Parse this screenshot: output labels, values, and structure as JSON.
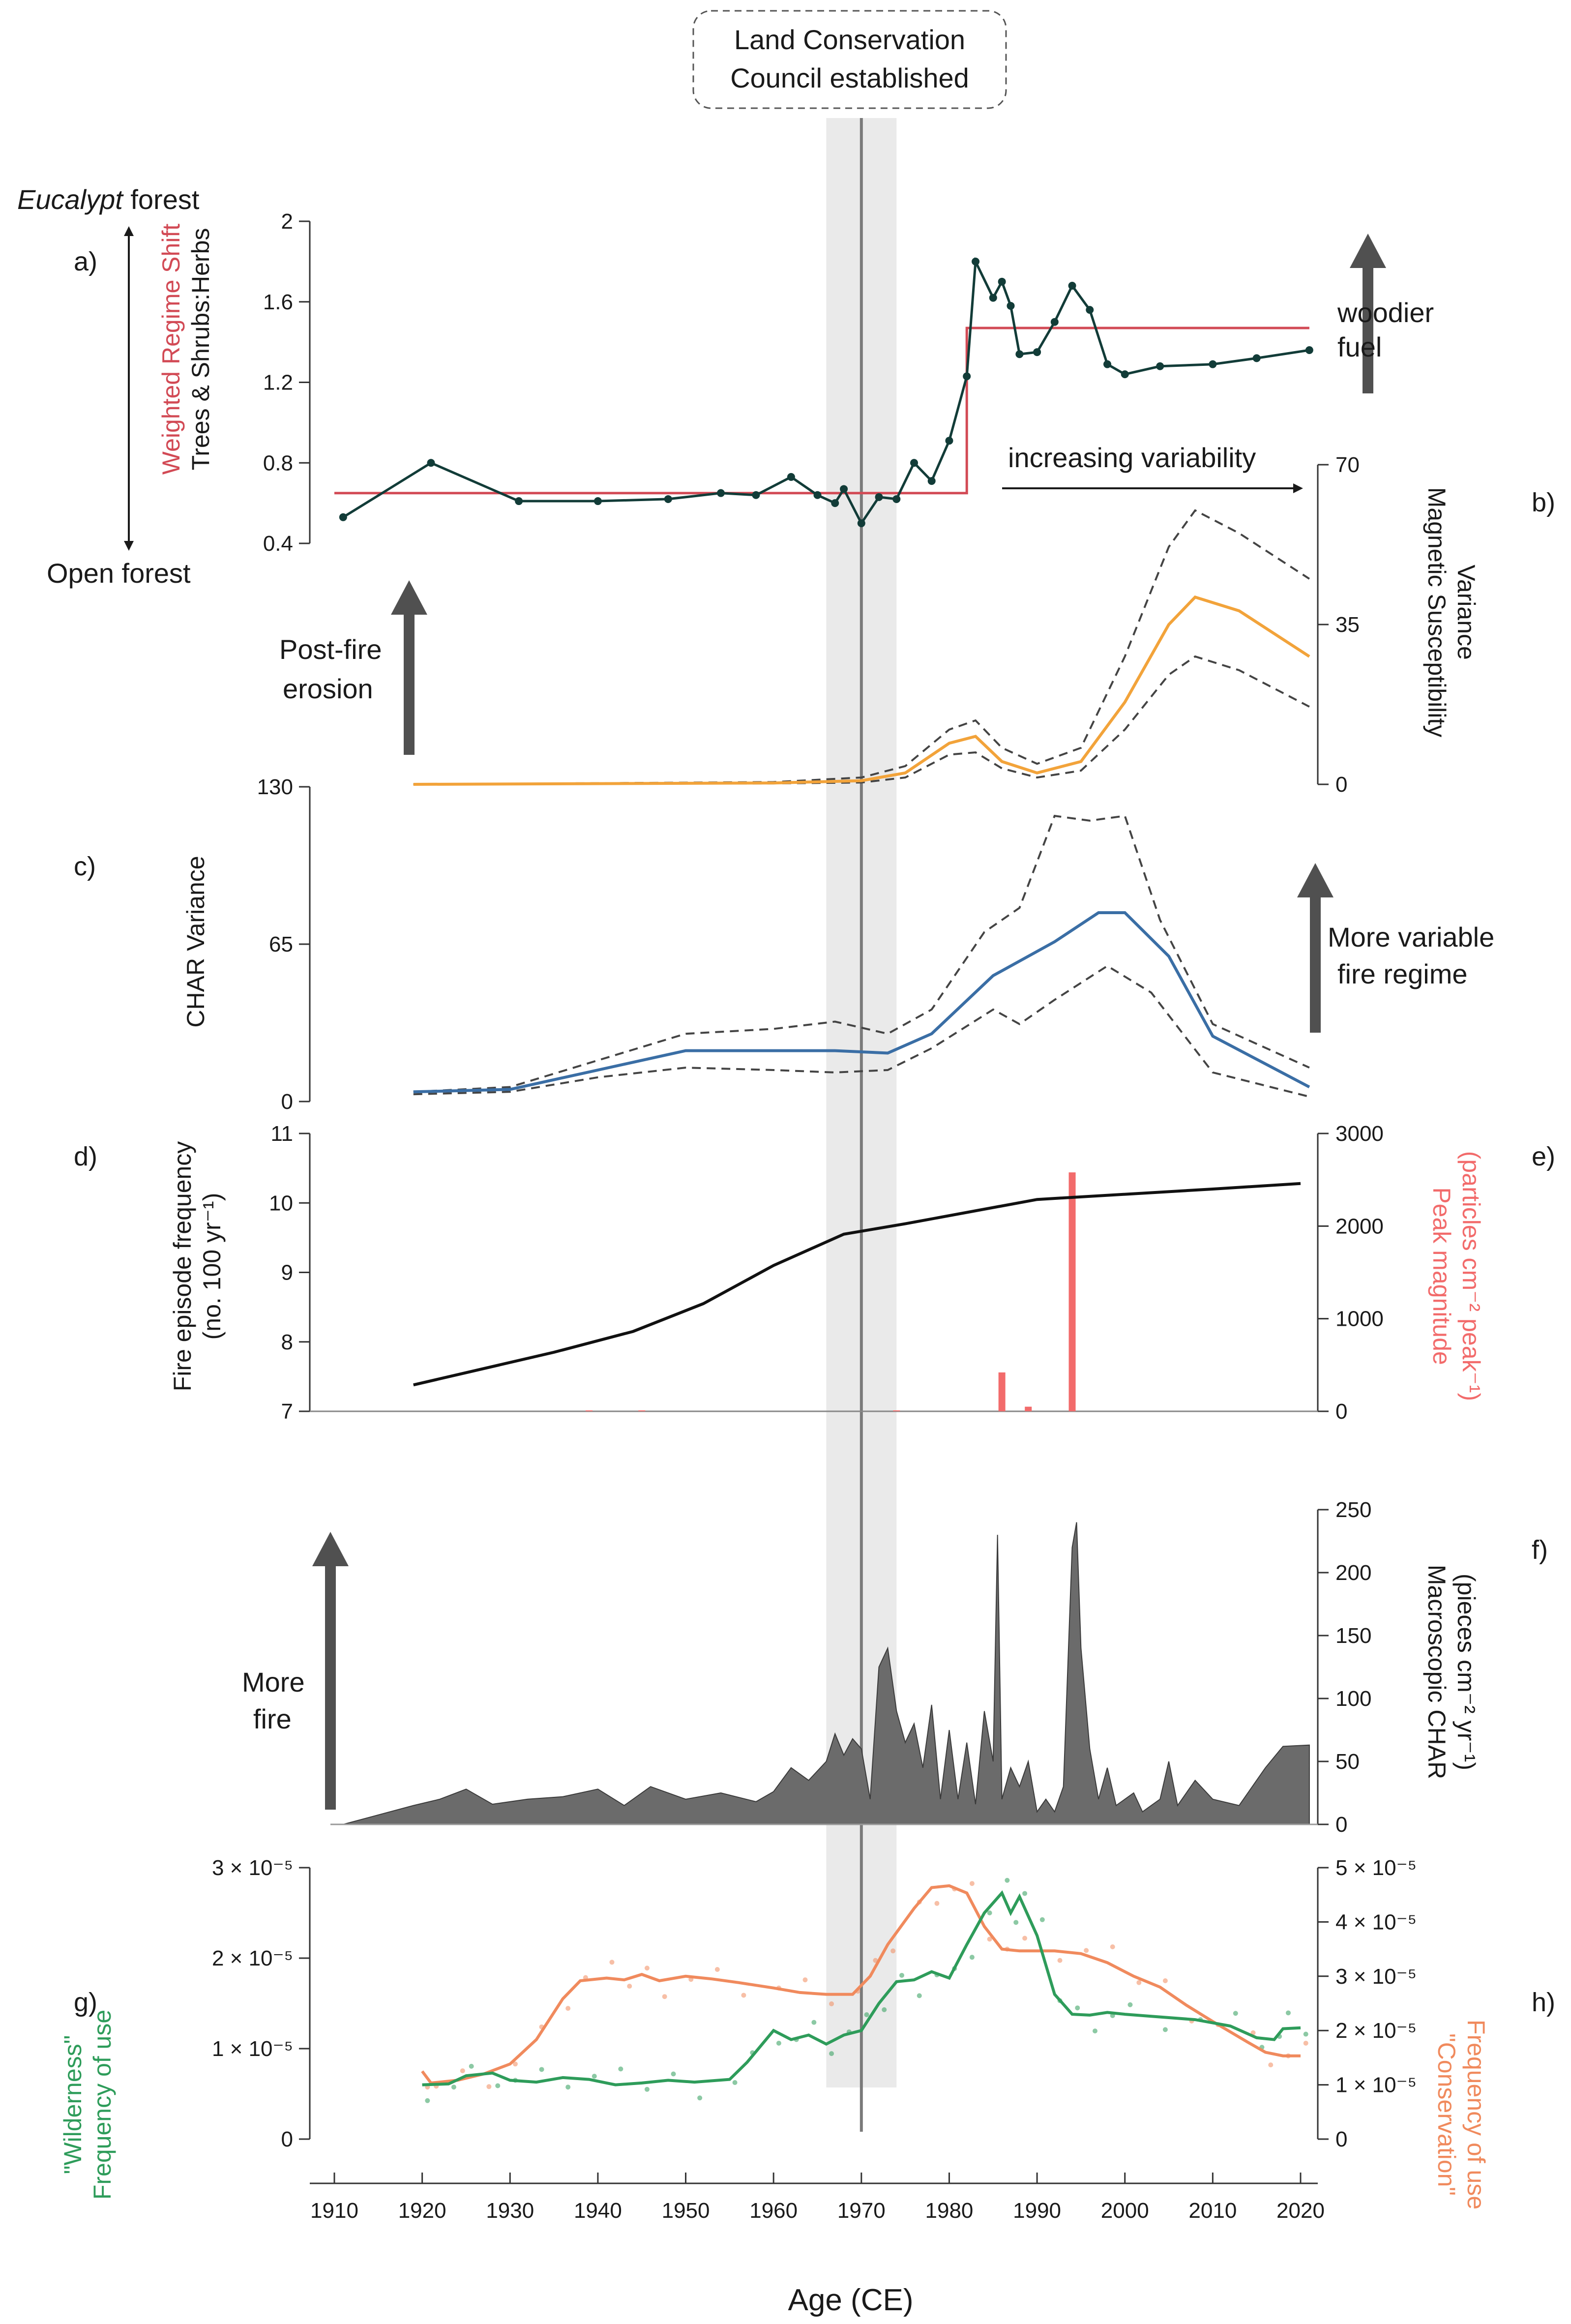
{
  "callout": {
    "line1": "Land Conservation",
    "line2": "Council established",
    "year": 1970,
    "band": [
      1966,
      1974
    ]
  },
  "xaxis": {
    "title": "Age (CE)",
    "min": 1910,
    "max": 2020,
    "ticks": [
      "1910",
      "1920",
      "1930",
      "1940",
      "1950",
      "1960",
      "1970",
      "1980",
      "1990",
      "2000",
      "2010",
      "2020"
    ]
  },
  "panel_labels": [
    "a)",
    "b)",
    "c)",
    "d)",
    "e)",
    "f)",
    "g)",
    "h)"
  ],
  "annotations": {
    "eucalypt_italic": "Eucalypt",
    "eucalypt_rest": " forest",
    "open_forest": "Open forest",
    "woodier_l1": "woodier",
    "woodier_l2": "fuel",
    "variability": "increasing variability",
    "erosion_l1": "Post-fire",
    "erosion_l2": "erosion",
    "fire_regime_l1": "More variable",
    "fire_regime_l2": "fire regime",
    "more_fire_l1": "More",
    "more_fire_l2": "fire"
  },
  "axis_labels": {
    "a_red": "Weighted Regime Shift",
    "a_black": "Trees & Shrubs:Herbs",
    "b_l1": "Magnetic Susceptibility",
    "b_l2": "Variance",
    "c": "CHAR Variance",
    "d_l1": "Fire episode frequency",
    "d_l2": "(no. 100 yr⁻¹)",
    "e_l1": "Peak magnitude",
    "e_l2": "(particles cm⁻² peak⁻¹)",
    "f_l1": "Macroscopic CHAR",
    "f_l2": "(pieces cm⁻² yr⁻¹)",
    "g_l1": "\"Wilderness\"",
    "g_l2": "Frequency of use",
    "h_l1": "\"Conservation\"",
    "h_l2": "Frequency of use"
  },
  "colors": {
    "ratio": "#123c38",
    "regime": "#d24a55",
    "mag": "#f2a33a",
    "char": "#3a6ea5",
    "bounds": "#444444",
    "peaks": "#f26b6b",
    "macro": "#6b6b6b",
    "wild": "#2e9c5a",
    "cons": "#f08a5d",
    "band": "#d9d9d9",
    "line1970": "#7a7a7a",
    "arrow": "#505050"
  },
  "chart_data": [
    {
      "panel": "a",
      "type": "line",
      "ylim": [
        0.4,
        2
      ],
      "yticks": [
        "0.4",
        "0.8",
        "1.2",
        "1.6",
        "2"
      ],
      "series": [
        {
          "name": "Trees & Shrubs:Herbs",
          "x": [
            1911,
            1921,
            1931,
            1940,
            1948,
            1954,
            1958,
            1962,
            1965,
            1967,
            1968,
            1970,
            1972,
            1974,
            1976,
            1978,
            1980,
            1982,
            1983,
            1985,
            1986,
            1987,
            1988,
            1990,
            1992,
            1994,
            1996,
            1998,
            2000,
            2004,
            2010,
            2015,
            2021
          ],
          "y": [
            0.53,
            0.8,
            0.61,
            0.61,
            0.62,
            0.65,
            0.64,
            0.73,
            0.64,
            0.6,
            0.67,
            0.5,
            0.63,
            0.62,
            0.8,
            0.71,
            0.91,
            1.23,
            1.8,
            1.62,
            1.7,
            1.58,
            1.34,
            1.35,
            1.5,
            1.68,
            1.56,
            1.29,
            1.24,
            1.28,
            1.29,
            1.32,
            1.36
          ]
        },
        {
          "name": "Weighted Regime Shift",
          "x": [
            1910,
            1982,
            1982,
            2021
          ],
          "y": [
            0.65,
            0.65,
            1.47,
            1.47
          ]
        }
      ]
    },
    {
      "panel": "b",
      "type": "line",
      "ylim": [
        0,
        70
      ],
      "yticks": [
        "0",
        "35",
        "70"
      ],
      "series": [
        {
          "name": "Magnetic Susceptibility Variance",
          "x": [
            1919,
            1960,
            1970,
            1975,
            1980,
            1983,
            1986,
            1990,
            1995,
            2000,
            2005,
            2008,
            2013,
            2021
          ],
          "y": [
            0,
            0.3,
            0.8,
            2.5,
            9,
            10.5,
            5,
            2.5,
            5,
            18,
            35,
            41,
            38,
            28
          ]
        },
        {
          "name": "Upper bound",
          "x": [
            1919,
            1960,
            1970,
            1975,
            1980,
            1983,
            1986,
            1990,
            1995,
            2000,
            2005,
            2008,
            2013,
            2021
          ],
          "y": [
            0,
            0.5,
            1.5,
            4,
            12,
            14,
            8,
            4.5,
            8,
            28,
            52,
            60,
            55,
            45
          ]
        },
        {
          "name": "Lower bound",
          "x": [
            1919,
            1960,
            1970,
            1975,
            1980,
            1983,
            1986,
            1990,
            1995,
            2000,
            2005,
            2008,
            2013,
            2021
          ],
          "y": [
            0,
            0.2,
            0.4,
            1.5,
            6.5,
            7,
            3.5,
            1.5,
            3,
            12,
            24,
            28,
            25,
            17
          ]
        }
      ]
    },
    {
      "panel": "c",
      "type": "line",
      "ylim": [
        0,
        130
      ],
      "yticks": [
        "0",
        "65",
        "130"
      ],
      "series": [
        {
          "name": "CHAR Variance",
          "x": [
            1919,
            1930,
            1940,
            1950,
            1960,
            1967,
            1973,
            1978,
            1985,
            1992,
            1997,
            2000,
            2005,
            2010,
            2021
          ],
          "y": [
            4,
            5,
            13,
            21,
            21,
            21,
            20,
            28,
            52,
            66,
            78,
            78,
            60,
            27,
            6
          ]
        },
        {
          "name": "Upper bound",
          "x": [
            1919,
            1930,
            1940,
            1950,
            1960,
            1967,
            1973,
            1978,
            1984,
            1988,
            1992,
            1996,
            2000,
            2004,
            2010,
            2021
          ],
          "y": [
            4,
            6,
            17,
            28,
            30,
            33,
            28,
            38,
            70,
            80,
            118,
            116,
            118,
            75,
            32,
            14
          ]
        },
        {
          "name": "Lower bound",
          "x": [
            1919,
            1930,
            1940,
            1950,
            1960,
            1967,
            1973,
            1978,
            1985,
            1988,
            1992,
            1998,
            2003,
            2010,
            2021
          ],
          "y": [
            3,
            4,
            10,
            14,
            13,
            12,
            13,
            22,
            38,
            32,
            42,
            56,
            45,
            12,
            2
          ]
        }
      ]
    },
    {
      "panel": "d",
      "type": "line",
      "ylim": [
        7,
        11
      ],
      "yticks": [
        "7",
        "8",
        "9",
        "10",
        "11"
      ],
      "series": [
        {
          "name": "Fire episode frequency",
          "x": [
            1919,
            1935,
            1944,
            1952,
            1960,
            1968,
            1975,
            1990,
            2010,
            2020
          ],
          "y": [
            7.38,
            7.85,
            8.15,
            8.55,
            9.1,
            9.55,
            9.7,
            10.05,
            10.2,
            10.28
          ]
        }
      ]
    },
    {
      "panel": "e",
      "type": "bar",
      "ylim": [
        0,
        3000
      ],
      "yticks": [
        "0",
        "1000",
        "2000",
        "3000"
      ],
      "x": [
        1939,
        1945,
        1974,
        1986,
        1989,
        1994
      ],
      "values": [
        10,
        10,
        10,
        420,
        50,
        2580
      ]
    },
    {
      "panel": "f",
      "type": "area",
      "ylim": [
        0,
        250
      ],
      "yticks": [
        "0",
        "50",
        "100",
        "150",
        "200",
        "250"
      ],
      "x": [
        1911,
        1919,
        1922,
        1925,
        1928,
        1932,
        1936,
        1940,
        1943,
        1946,
        1950,
        1954,
        1958,
        1960,
        1962,
        1964,
        1966,
        1967,
        1968,
        1969,
        1970,
        1971,
        1972,
        1973,
        1974,
        1975,
        1976,
        1977,
        1978,
        1979,
        1980,
        1981,
        1982,
        1983,
        1984,
        1985,
        1985.5,
        1986,
        1987,
        1988,
        1989,
        1990,
        1991,
        1992,
        1993,
        1994,
        1994.5,
        1995,
        1996,
        1997,
        1998,
        1999,
        2000,
        2001,
        2002,
        2003,
        2004,
        2005,
        2006,
        2008,
        2010,
        2013,
        2016,
        2018,
        2021
      ],
      "values": [
        0,
        15,
        20,
        28,
        16,
        20,
        22,
        28,
        15,
        30,
        20,
        25,
        18,
        26,
        45,
        35,
        50,
        72,
        55,
        68,
        60,
        20,
        125,
        140,
        90,
        65,
        80,
        45,
        95,
        20,
        75,
        20,
        65,
        16,
        90,
        50,
        230,
        20,
        45,
        30,
        50,
        10,
        20,
        10,
        30,
        220,
        240,
        140,
        60,
        20,
        45,
        15,
        20,
        25,
        10,
        15,
        20,
        50,
        15,
        35,
        20,
        15,
        45,
        62,
        63
      ]
    },
    {
      "panel": "g",
      "type": "line",
      "ylim": [
        0,
        3e-05
      ],
      "yticks": [
        "0",
        "1 × 10⁻⁵",
        "2 × 10⁻⁵",
        "3 × 10⁻⁵"
      ],
      "series": [
        {
          "name": "\"Wilderness\" Frequency of use",
          "x": [
            1920,
            1923,
            1925,
            1928,
            1930,
            1933,
            1936,
            1939,
            1942,
            1945,
            1948,
            1951,
            1955,
            1957,
            1960,
            1962,
            1964,
            1966,
            1968,
            1970,
            1972,
            1974,
            1976,
            1978,
            1980,
            1982,
            1984,
            1986,
            1987,
            1988,
            1990,
            1992,
            1994,
            1996,
            1998,
            2000,
            2004,
            2008,
            2012,
            2015,
            2017,
            2018,
            2020
          ],
          "y": [
            0.6,
            0.61,
            0.7,
            0.73,
            0.65,
            0.63,
            0.68,
            0.66,
            0.6,
            0.62,
            0.65,
            0.63,
            0.66,
            0.85,
            1.2,
            1.1,
            1.15,
            1.05,
            1.15,
            1.2,
            1.5,
            1.74,
            1.76,
            1.85,
            1.78,
            2.15,
            2.5,
            2.72,
            2.5,
            2.68,
            2.25,
            1.6,
            1.38,
            1.37,
            1.4,
            1.38,
            1.35,
            1.32,
            1.25,
            1.12,
            1.1,
            1.22,
            1.23
          ]
        },
        {
          "name": "\"Conservation\" Frequency of use",
          "x": [
            1920,
            1921,
            1924,
            1927,
            1930,
            1933,
            1936,
            1938,
            1941,
            1943,
            1945,
            1947,
            1950,
            1953,
            1956,
            1960,
            1963,
            1966,
            1969,
            1971,
            1973,
            1976,
            1978,
            1980,
            1982,
            1984,
            1986,
            1988,
            1992,
            1995,
            1998,
            2001,
            2004,
            2007,
            2010,
            2014,
            2016,
            2018,
            2020
          ],
          "y": [
            0.75,
            0.62,
            0.65,
            0.72,
            0.83,
            1.1,
            1.55,
            1.75,
            1.78,
            1.76,
            1.82,
            1.75,
            1.8,
            1.77,
            1.73,
            1.67,
            1.62,
            1.6,
            1.6,
            1.8,
            2.15,
            2.55,
            2.78,
            2.8,
            2.72,
            2.35,
            2.1,
            2.08,
            2.08,
            2.05,
            1.95,
            1.8,
            1.68,
            1.48,
            1.3,
            1.07,
            0.96,
            0.92,
            0.92
          ]
        }
      ]
    },
    {
      "panel": "h",
      "type": "axis",
      "ylim": [
        0,
        5e-05
      ],
      "yticks": [
        "0",
        "1 × 10⁻⁵",
        "2 × 10⁻⁵",
        "3 × 10⁻⁵",
        "4 × 10⁻⁵",
        "5 × 10⁻⁵"
      ]
    }
  ]
}
